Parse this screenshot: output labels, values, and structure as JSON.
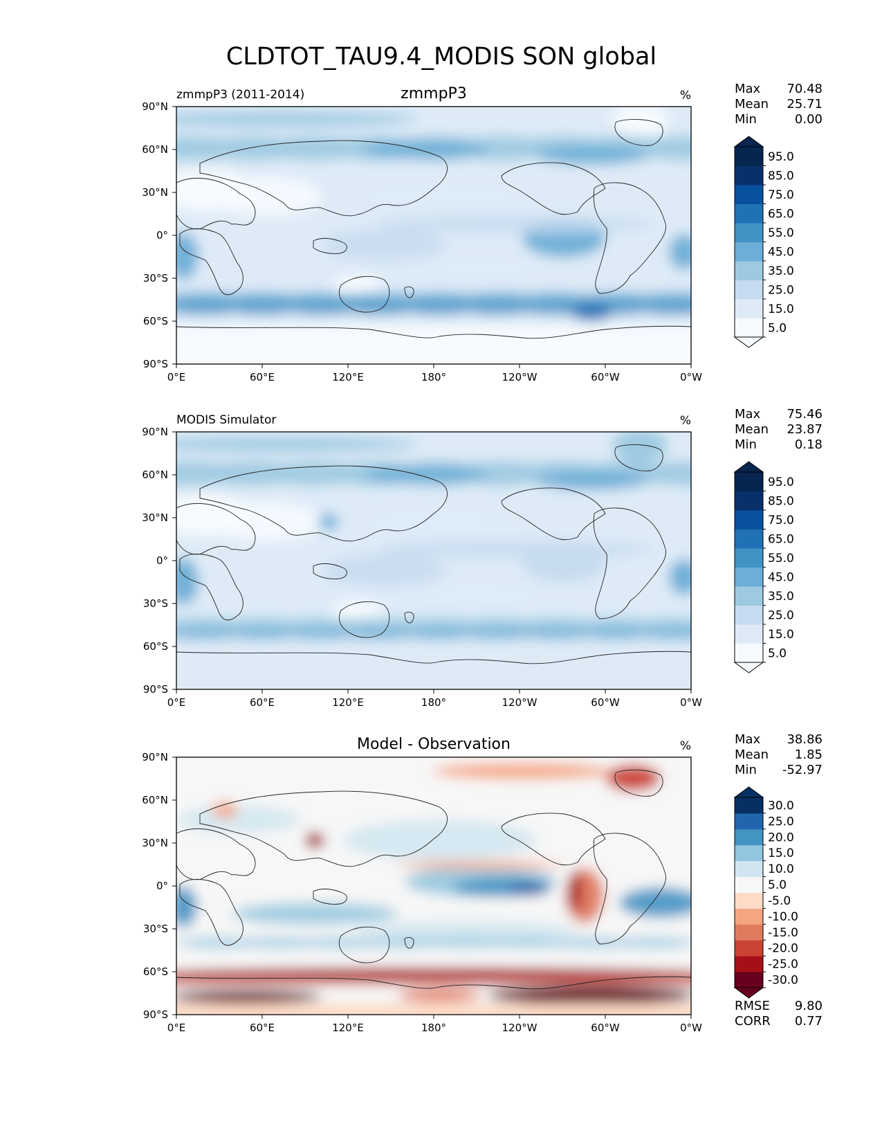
{
  "figure_title": "CLDTOT_TAU9.4_MODIS SON global",
  "chart_data": [
    {
      "type": "heatmap",
      "map_projection": "global lat-lon (Pacific centered)",
      "left_title": "zmmpP3 (2011-2014)",
      "center_title": "zmmpP3",
      "units": "%",
      "stats": [
        {
          "label": "Max",
          "value": "70.48"
        },
        {
          "label": "Mean",
          "value": "25.71"
        },
        {
          "label": "Min",
          "value": "0.00"
        }
      ],
      "colorbar": {
        "colormap": "Blues",
        "extend": "both",
        "colors": [
          "#f7fbff",
          "#deebf7",
          "#c6dbef",
          "#9ecae1",
          "#6baed6",
          "#4292c6",
          "#2171b5",
          "#08519c",
          "#08306b",
          "#06254f"
        ],
        "tick_labels": [
          "95.0",
          "85.0",
          "75.0",
          "65.0",
          "55.0",
          "45.0",
          "35.0",
          "25.0",
          "15.0",
          "5.0"
        ]
      },
      "xticks": [
        "0°E",
        "60°E",
        "120°E",
        "180°",
        "120°W",
        "60°W",
        "0°W"
      ],
      "yticks": [
        "90°N",
        "60°N",
        "30°N",
        "0°",
        "30°S",
        "60°S",
        "90°S"
      ],
      "xlim": [
        0,
        360
      ],
      "ylim": [
        -90,
        90
      ]
    },
    {
      "type": "heatmap",
      "map_projection": "global lat-lon (Pacific centered)",
      "left_title": "MODIS Simulator",
      "center_title": "",
      "units": "%",
      "stats": [
        {
          "label": "Max",
          "value": "75.46"
        },
        {
          "label": "Mean",
          "value": "23.87"
        },
        {
          "label": "Min",
          "value": "0.18"
        }
      ],
      "colorbar": {
        "colormap": "Blues",
        "extend": "both",
        "colors": [
          "#f7fbff",
          "#deebf7",
          "#c6dbef",
          "#9ecae1",
          "#6baed6",
          "#4292c6",
          "#2171b5",
          "#08519c",
          "#08306b",
          "#06254f"
        ],
        "tick_labels": [
          "95.0",
          "85.0",
          "75.0",
          "65.0",
          "55.0",
          "45.0",
          "35.0",
          "25.0",
          "15.0",
          "5.0"
        ]
      },
      "xticks": [
        "0°E",
        "60°E",
        "120°E",
        "180°",
        "120°W",
        "60°W",
        "0°W"
      ],
      "yticks": [
        "90°N",
        "60°N",
        "30°N",
        "0°",
        "30°S",
        "60°S",
        "90°S"
      ],
      "xlim": [
        0,
        360
      ],
      "ylim": [
        -90,
        90
      ]
    },
    {
      "type": "heatmap",
      "map_projection": "global lat-lon (Pacific centered)",
      "left_title": "",
      "center_title": "Model - Observation",
      "units": "%",
      "stats": [
        {
          "label": "Max",
          "value": "38.86"
        },
        {
          "label": "Mean",
          "value": "1.85"
        },
        {
          "label": "Min",
          "value": "-52.97"
        }
      ],
      "extra_stats": [
        {
          "label": "RMSE",
          "value": "9.80"
        },
        {
          "label": "CORR",
          "value": "0.77"
        }
      ],
      "colorbar": {
        "colormap": "RdBu",
        "extend": "both",
        "colors": [
          "#67001f",
          "#a50f15",
          "#cb4335",
          "#e07a5f",
          "#f4a582",
          "#fddbc7",
          "#f7f7f7",
          "#d1e5f0",
          "#92c5de",
          "#4393c3",
          "#2166ac",
          "#053061"
        ],
        "tick_labels": [
          "30.0",
          "25.0",
          "20.0",
          "15.0",
          "10.0",
          "5.0",
          "-5.0",
          "-10.0",
          "-15.0",
          "-20.0",
          "-25.0",
          "-30.0"
        ]
      },
      "xticks": [
        "0°E",
        "60°E",
        "120°E",
        "180°",
        "120°W",
        "60°W",
        "0°W"
      ],
      "yticks": [
        "90°N",
        "60°N",
        "30°N",
        "0°",
        "30°S",
        "60°S",
        "90°S"
      ],
      "xlim": [
        0,
        360
      ],
      "ylim": [
        -90,
        90
      ]
    }
  ]
}
